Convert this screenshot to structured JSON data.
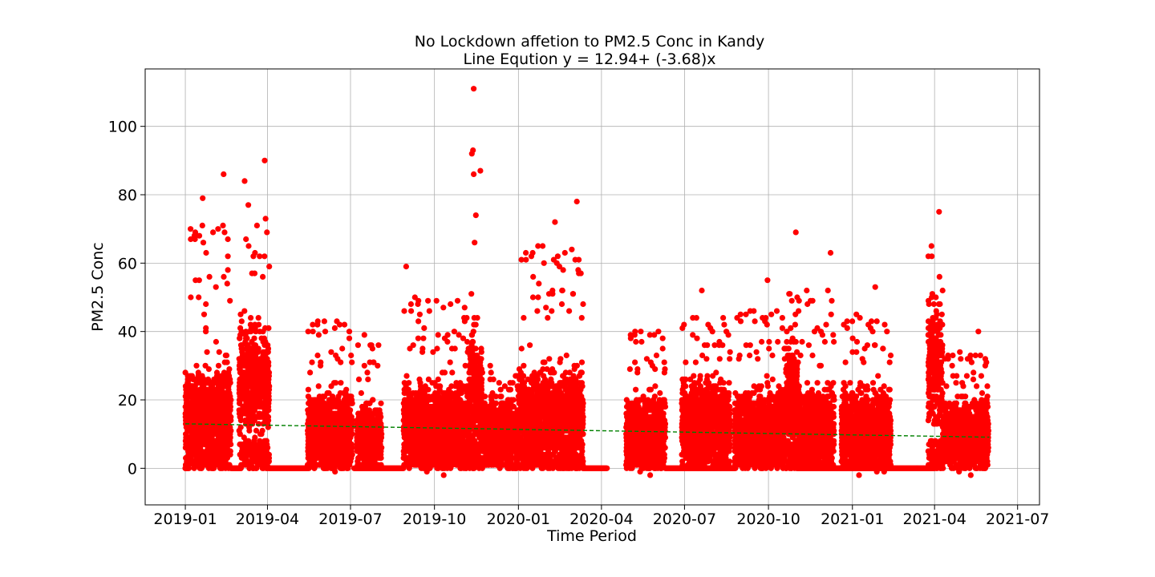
{
  "chart_data": {
    "type": "scatter",
    "title": "No Lockdown affetion to PM2.5 Conc in Kandy",
    "subtitle": "Line Eqution y = 12.94+ (-3.68)x",
    "xlabel": "Time Period",
    "ylabel": "PM2.5 Conc",
    "x_type": "date",
    "xlim": [
      "2018-11-18",
      "2021-07-25"
    ],
    "ylim": [
      -10.7,
      116.8
    ],
    "x_ticks": [
      "2019-01",
      "2019-04",
      "2019-07",
      "2019-10",
      "2020-01",
      "2020-04",
      "2020-07",
      "2020-10",
      "2021-01",
      "2021-04",
      "2021-07"
    ],
    "y_ticks": [
      0,
      20,
      40,
      60,
      80,
      100
    ],
    "grid": true,
    "legend": "none",
    "colors": {
      "points": "#ff0000",
      "trend": "#008000"
    },
    "series": [
      {
        "kind": "points",
        "clusters": [
          {
            "start": "2019-01-01",
            "end": "2019-02-20",
            "center": 17,
            "spread": 10,
            "max": 86
          },
          {
            "start": "2019-03-01",
            "end": "2019-04-03",
            "center": 25,
            "spread": 13,
            "max": 90
          },
          {
            "start": "2019-05-15",
            "end": "2019-07-03",
            "center": 12,
            "spread": 8,
            "max": 51
          },
          {
            "start": "2019-07-08",
            "end": "2019-08-04",
            "center": 10,
            "spread": 7,
            "max": 46
          },
          {
            "start": "2019-08-28",
            "end": "2019-11-08",
            "center": 13,
            "spread": 9,
            "max": 59
          },
          {
            "start": "2019-11-08",
            "end": "2019-11-22",
            "center": 22,
            "spread": 15,
            "max": 111
          },
          {
            "start": "2019-11-22",
            "end": "2020-01-01",
            "center": 11,
            "spread": 7,
            "max": 35
          },
          {
            "start": "2020-01-01",
            "end": "2020-03-12",
            "center": 16,
            "spread": 10,
            "max": 78
          },
          {
            "start": "2020-04-28",
            "end": "2020-06-10",
            "center": 11,
            "spread": 8,
            "max": 48
          },
          {
            "start": "2020-06-28",
            "end": "2020-08-20",
            "center": 14,
            "spread": 9,
            "max": 52
          },
          {
            "start": "2020-08-25",
            "end": "2020-10-20",
            "center": 13,
            "spread": 8,
            "max": 55
          },
          {
            "start": "2020-10-20",
            "end": "2020-11-03",
            "center": 22,
            "spread": 13,
            "max": 69
          },
          {
            "start": "2020-11-03",
            "end": "2020-12-12",
            "center": 13,
            "spread": 8,
            "max": 63
          },
          {
            "start": "2020-12-20",
            "end": "2021-02-12",
            "center": 12,
            "spread": 9,
            "max": 53
          },
          {
            "start": "2021-03-25",
            "end": "2021-04-10",
            "center": 30,
            "spread": 14,
            "max": 75
          },
          {
            "start": "2021-04-10",
            "end": "2021-05-30",
            "center": 11,
            "spread": 8,
            "max": 40
          }
        ],
        "zero_runs": [
          [
            "2019-01-01",
            "2019-01-05"
          ],
          [
            "2019-02-20",
            "2019-03-01"
          ],
          [
            "2019-04-03",
            "2019-05-15"
          ],
          [
            "2019-07-05",
            "2019-08-28"
          ],
          [
            "2020-03-12",
            "2020-04-07"
          ],
          [
            "2020-06-10",
            "2020-08-25"
          ],
          [
            "2020-11-01",
            "2021-04-01"
          ]
        ],
        "outliers": [
          {
            "x": "2019-11-13",
            "y": 111
          },
          {
            "x": "2019-11-11",
            "y": 92
          },
          {
            "x": "2019-03-29",
            "y": 90
          },
          {
            "x": "2019-02-12",
            "y": 86
          },
          {
            "x": "2019-11-13",
            "y": 86
          },
          {
            "x": "2019-03-07",
            "y": 84
          },
          {
            "x": "2019-01-20",
            "y": 79
          },
          {
            "x": "2020-03-05",
            "y": 78
          },
          {
            "x": "2021-04-06",
            "y": 75
          },
          {
            "x": "2020-02-10",
            "y": 72
          },
          {
            "x": "2020-10-31",
            "y": 69
          },
          {
            "x": "2020-12-08",
            "y": 63
          },
          {
            "x": "2019-08-31",
            "y": 59
          },
          {
            "x": "2020-09-30",
            "y": 55
          },
          {
            "x": "2021-01-26",
            "y": 53
          },
          {
            "x": "2020-07-20",
            "y": 52
          },
          {
            "x": "2021-05-19",
            "y": 40
          }
        ]
      },
      {
        "kind": "trend",
        "style": "dashed",
        "x": [
          "2019-01-01",
          "2021-05-31"
        ],
        "y": [
          13,
          9.1
        ]
      }
    ]
  }
}
